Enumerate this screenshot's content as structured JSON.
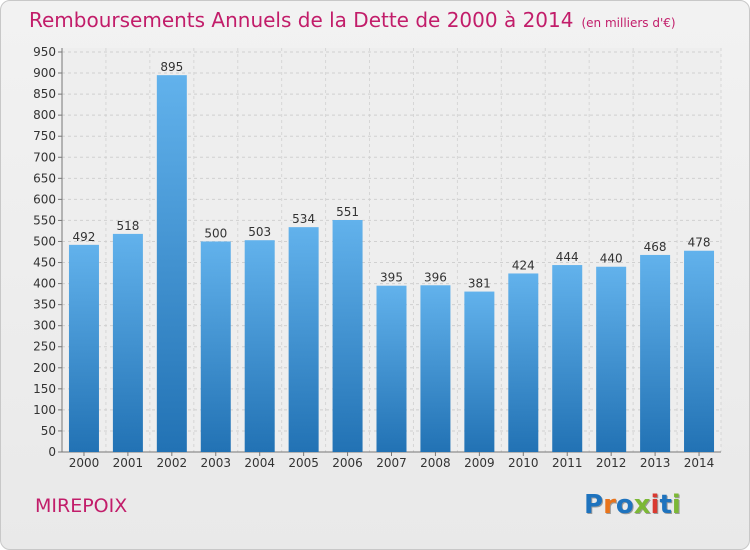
{
  "title": {
    "main": "Remboursements Annuels de la Dette de 2000 à 2014",
    "unit_note": "(en milliers d'€)"
  },
  "footer": {
    "city": "MIREPOIX",
    "logo_text": "Proxiti"
  },
  "colors": {
    "title": "#c21d6a",
    "bar_top": "#62b2ec",
    "bar_bottom": "#2272b4",
    "logo": [
      "#1e73be",
      "#e8741c",
      "#1e73be",
      "#7cb836",
      "#d93a31",
      "#1e73be",
      "#7cb836"
    ]
  },
  "chart_data": {
    "type": "bar",
    "title": "Remboursements Annuels de la Dette de 2000 à 2014",
    "xlabel": "",
    "ylabel": "",
    "categories": [
      "2000",
      "2001",
      "2002",
      "2003",
      "2004",
      "2005",
      "2006",
      "2007",
      "2008",
      "2009",
      "2010",
      "2011",
      "2012",
      "2013",
      "2014"
    ],
    "values": [
      492,
      518,
      895,
      500,
      503,
      534,
      551,
      395,
      396,
      381,
      424,
      444,
      440,
      468,
      478
    ],
    "ylim": [
      0,
      950
    ],
    "yticks": [
      0,
      50,
      100,
      150,
      200,
      250,
      300,
      350,
      400,
      450,
      500,
      550,
      600,
      650,
      700,
      750,
      800,
      850,
      900,
      950
    ],
    "grid": true,
    "data_labels": true
  }
}
